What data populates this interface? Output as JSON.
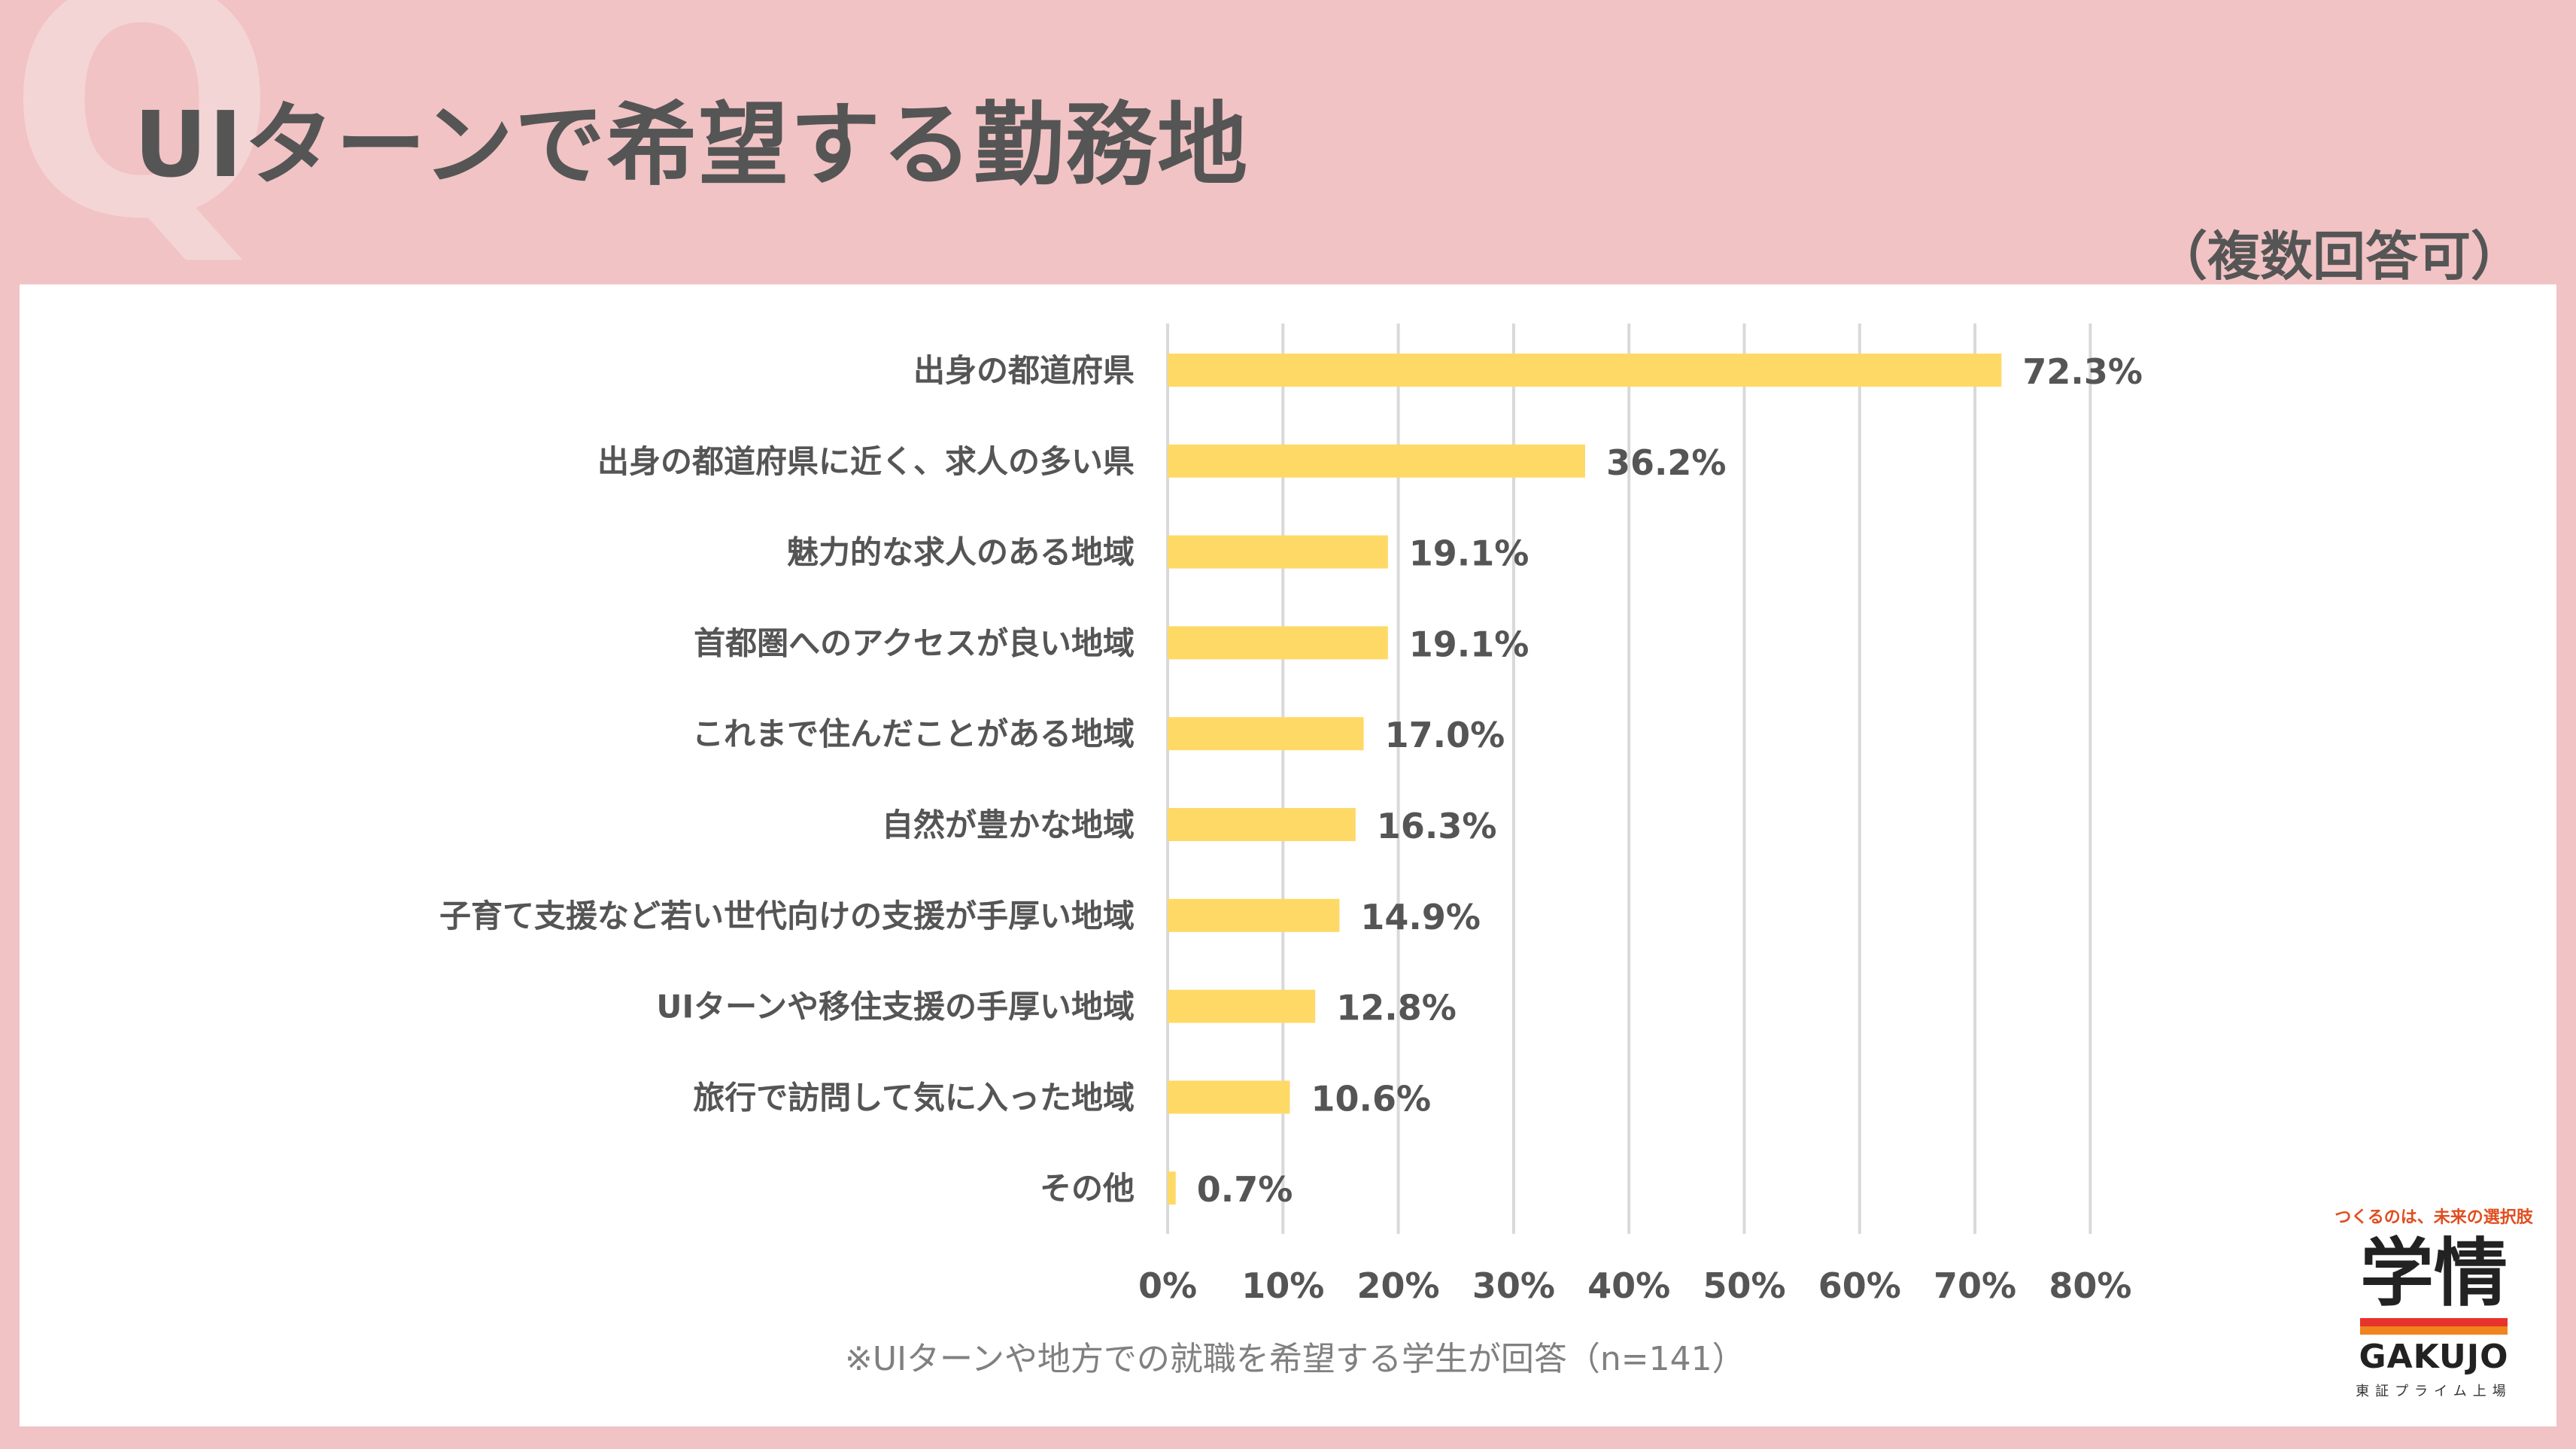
{
  "header": {
    "watermark": "Q",
    "title": "UIターンで希望する勤務地",
    "note": "（複数回答可）"
  },
  "footnote": "※UIターンや地方での就職を希望する学生が回答（n=141）",
  "logo": {
    "tagline": "つくるのは、未来の選択肢",
    "mark": "学情",
    "wordmark": "GAKUJO",
    "listing": "東証プライム上場"
  },
  "colors": {
    "background": "#f1c3c4",
    "bar": "#ffd966",
    "text": "#555555",
    "grid": "#d9d9d9"
  },
  "chart_data": {
    "type": "bar",
    "orientation": "horizontal",
    "categories": [
      "出身の都道府県",
      "出身の都道府県に近く、求人の多い県",
      "魅力的な求人のある地域",
      "首都圏へのアクセスが良い地域",
      "これまで住んだことがある地域",
      "自然が豊かな地域",
      "子育て支援など若い世代向けの支援が手厚い地域",
      "UIターンや移住支援の手厚い地域",
      "旅行で訪問して気に入った地域",
      "その他"
    ],
    "values": [
      72.3,
      36.2,
      19.1,
      19.1,
      17.0,
      16.3,
      14.9,
      12.8,
      10.6,
      0.7
    ],
    "value_labels": [
      "72.3%",
      "36.2%",
      "19.1%",
      "19.1%",
      "17.0%",
      "16.3%",
      "14.9%",
      "12.8%",
      "10.6%",
      "0.7%"
    ],
    "xlim": [
      0,
      80
    ],
    "xticks": [
      0,
      10,
      20,
      30,
      40,
      50,
      60,
      70,
      80
    ],
    "xtick_labels": [
      "0%",
      "10%",
      "20%",
      "30%",
      "40%",
      "50%",
      "60%",
      "70%",
      "80%"
    ],
    "grid": true,
    "legend": "none"
  }
}
